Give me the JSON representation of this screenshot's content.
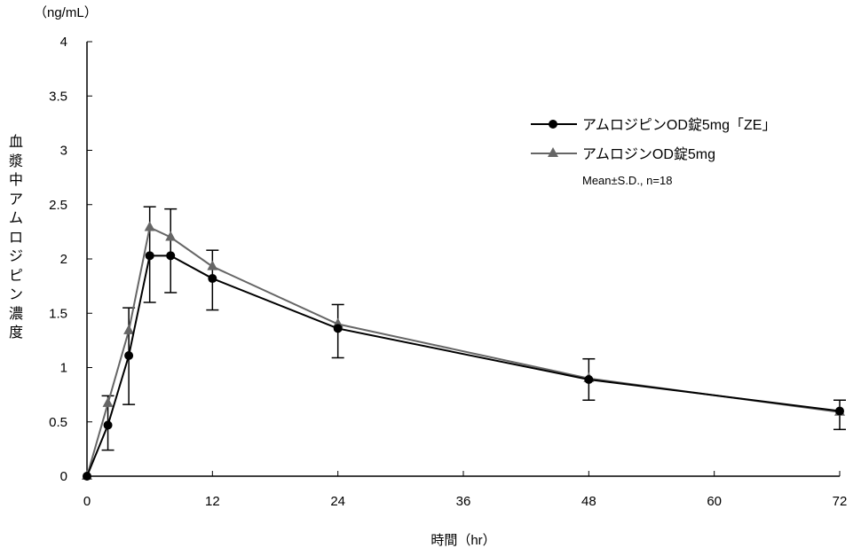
{
  "chart_data": {
    "type": "line",
    "unit_label": "（ng/mL）",
    "ylabel": "血漿中アムロジピン濃度",
    "xlabel": "時間（hr）",
    "xlim": [
      0,
      72
    ],
    "ylim": [
      0,
      4
    ],
    "xticks": [
      0,
      12,
      24,
      36,
      48,
      60,
      72
    ],
    "yticks": [
      0,
      0.5,
      1,
      1.5,
      2,
      2.5,
      3,
      3.5,
      4
    ],
    "ytick_labels": [
      "0",
      "0.5",
      "1",
      "1.5",
      "2",
      "2.5",
      "3",
      "3.5",
      "4"
    ],
    "legend_position": "top-right",
    "legend_note": "Mean±S.D., n=18",
    "x": [
      0,
      2,
      4,
      6,
      8,
      12,
      24,
      48,
      72
    ],
    "series": [
      {
        "name": "アムロジピンOD錠5mg「ZE」",
        "color": "#000000",
        "marker": "circle",
        "values": [
          0,
          0.47,
          1.11,
          2.03,
          2.03,
          1.82,
          1.36,
          0.89,
          0.6
        ],
        "sd_upper": [
          0,
          0.74,
          1.55,
          2.48,
          2.46,
          2.08,
          1.58,
          1.08,
          0.7
        ],
        "sd_lower": [
          0,
          0.24,
          0.66,
          1.6,
          1.69,
          1.53,
          1.09,
          0.7,
          0.43
        ]
      },
      {
        "name": "アムロジンOD錠5mg",
        "color": "#666666",
        "marker": "triangle",
        "values": [
          0,
          0.67,
          1.34,
          2.29,
          2.2,
          1.93,
          1.4,
          0.9,
          0.59
        ]
      }
    ]
  }
}
